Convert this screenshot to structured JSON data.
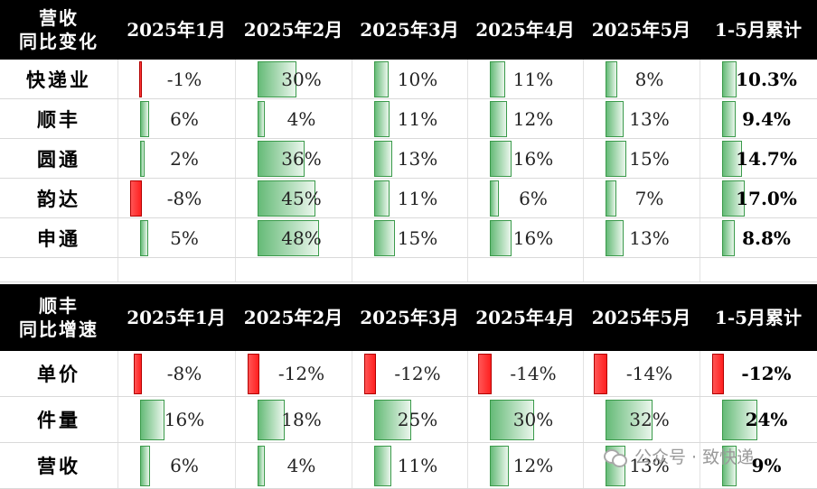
{
  "chart_data": [
    {
      "type": "table",
      "corner_label": [
        "营收",
        "同比变化"
      ],
      "columns": [
        "2025年1月",
        "2025年2月",
        "2025年3月",
        "2025年4月",
        "2025年5月",
        "1-5月累计"
      ],
      "rows": [
        {
          "label": "快递业",
          "values": [
            -1,
            30,
            10,
            11,
            8,
            10.3
          ],
          "display": [
            "-1%",
            "30%",
            "10%",
            "11%",
            "8%",
            "10.3%"
          ]
        },
        {
          "label": "顺丰",
          "values": [
            6,
            4,
            11,
            12,
            13,
            9.4
          ],
          "display": [
            "6%",
            "4%",
            "11%",
            "12%",
            "13%",
            "9.4%"
          ]
        },
        {
          "label": "圆通",
          "values": [
            2,
            36,
            13,
            16,
            15,
            14.7
          ],
          "display": [
            "2%",
            "36%",
            "13%",
            "16%",
            "15%",
            "14.7%"
          ]
        },
        {
          "label": "韵达",
          "values": [
            -8,
            45,
            11,
            6,
            7,
            17.0
          ],
          "display": [
            "-8%",
            "45%",
            "11%",
            "6%",
            "7%",
            "17.0%"
          ]
        },
        {
          "label": "申通",
          "values": [
            5,
            48,
            15,
            16,
            13,
            8.8
          ],
          "display": [
            "5%",
            "48%",
            "15%",
            "16%",
            "13%",
            "8.8%"
          ]
        }
      ]
    },
    {
      "type": "table",
      "corner_label": [
        "顺丰",
        "同比增速"
      ],
      "columns": [
        "2025年1月",
        "2025年2月",
        "2025年3月",
        "2025年4月",
        "2025年5月",
        "1-5月累计"
      ],
      "rows": [
        {
          "label": "单价",
          "values": [
            -8,
            -12,
            -12,
            -14,
            -14,
            -12
          ],
          "display": [
            "-8%",
            "-12%",
            "-12%",
            "-14%",
            "-14%",
            "-12%"
          ]
        },
        {
          "label": "件量",
          "values": [
            16,
            18,
            25,
            30,
            32,
            24
          ],
          "display": [
            "16%",
            "18%",
            "25%",
            "30%",
            "32%",
            "24%"
          ]
        },
        {
          "label": "营收",
          "values": [
            6,
            4,
            11,
            12,
            13,
            9
          ],
          "display": [
            "6%",
            "4%",
            "11%",
            "12%",
            "13%",
            "9%"
          ]
        }
      ]
    }
  ],
  "watermark": "公众号 · 致快递",
  "colors": {
    "positive": "#66bb78",
    "negative": "#ff2a2a",
    "header_bg": "#000000"
  }
}
